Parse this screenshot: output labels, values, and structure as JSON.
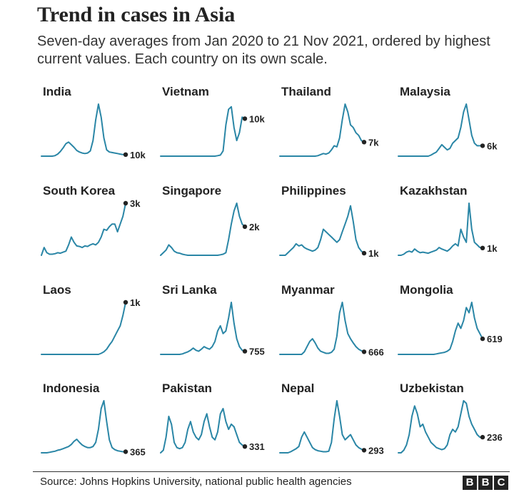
{
  "header": {
    "title": "Trend in cases in Asia",
    "subtitle": "Seven-day averages from Jan 2020 to 21 Nov 2021, ordered by highest current values. Each country on its own scale."
  },
  "footer": {
    "source": "Source: Johns Hopkins University, national public health agencies",
    "logo_letters": [
      "B",
      "B",
      "C"
    ]
  },
  "colors": {
    "line": "#2a86a6",
    "dot": "#222222",
    "text": "#222222"
  },
  "chart_data": {
    "type": "line",
    "layout": "small-multiples",
    "x_range": [
      "Jan 2020",
      "21 Nov 2021"
    ],
    "independent_scales": true,
    "panels": [
      {
        "name": "India",
        "current_label": "10k",
        "current": 10000,
        "y": [
          0,
          0,
          0,
          0,
          0,
          0.01,
          0.04,
          0.09,
          0.16,
          0.24,
          0.27,
          0.22,
          0.17,
          0.11,
          0.08,
          0.06,
          0.05,
          0.06,
          0.1,
          0.3,
          0.7,
          1.0,
          0.75,
          0.35,
          0.12,
          0.08,
          0.07,
          0.06,
          0.05,
          0.04,
          0.03,
          0.03
        ]
      },
      {
        "name": "Vietnam",
        "current_label": "10k",
        "current": 10000,
        "y": [
          0,
          0,
          0,
          0,
          0,
          0,
          0,
          0,
          0,
          0,
          0,
          0,
          0,
          0,
          0,
          0,
          0,
          0,
          0,
          0,
          0,
          0.01,
          0.02,
          0.1,
          0.6,
          0.9,
          0.95,
          0.55,
          0.3,
          0.45,
          0.75,
          0.72
        ]
      },
      {
        "name": "Thailand",
        "current_label": "7k",
        "current": 7000,
        "y": [
          0,
          0,
          0,
          0,
          0,
          0,
          0,
          0,
          0,
          0,
          0,
          0,
          0,
          0,
          0.01,
          0.03,
          0.05,
          0.04,
          0.06,
          0.12,
          0.2,
          0.18,
          0.35,
          0.7,
          1.0,
          0.85,
          0.6,
          0.55,
          0.45,
          0.4,
          0.3,
          0.27
        ]
      },
      {
        "name": "Malaysia",
        "current_label": "6k",
        "current": 6000,
        "y": [
          0,
          0,
          0,
          0,
          0,
          0,
          0,
          0,
          0,
          0,
          0,
          0,
          0.02,
          0.05,
          0.08,
          0.15,
          0.22,
          0.17,
          0.12,
          0.15,
          0.25,
          0.3,
          0.35,
          0.55,
          0.85,
          1.0,
          0.7,
          0.4,
          0.25,
          0.2,
          0.2,
          0.2
        ]
      },
      {
        "name": "South Korea",
        "current_label": "3k",
        "current": 3000,
        "y": [
          0,
          0.15,
          0.05,
          0.02,
          0.02,
          0.03,
          0.05,
          0.04,
          0.06,
          0.08,
          0.2,
          0.35,
          0.25,
          0.18,
          0.17,
          0.15,
          0.18,
          0.17,
          0.2,
          0.22,
          0.2,
          0.25,
          0.35,
          0.5,
          0.48,
          0.55,
          0.6,
          0.6,
          0.45,
          0.6,
          0.75,
          1.0
        ]
      },
      {
        "name": "Singapore",
        "current_label": "2k",
        "current": 2000,
        "y": [
          0,
          0.05,
          0.1,
          0.2,
          0.15,
          0.08,
          0.05,
          0.04,
          0.02,
          0.01,
          0,
          0,
          0,
          0,
          0,
          0,
          0,
          0,
          0,
          0,
          0,
          0,
          0.01,
          0.02,
          0.05,
          0.3,
          0.6,
          0.85,
          1.0,
          0.75,
          0.6,
          0.55
        ]
      },
      {
        "name": "Philippines",
        "current_label": "1k",
        "current": 1000,
        "y": [
          0,
          0,
          0,
          0.05,
          0.1,
          0.15,
          0.22,
          0.18,
          0.2,
          0.15,
          0.12,
          0.1,
          0.08,
          0.1,
          0.15,
          0.3,
          0.5,
          0.45,
          0.4,
          0.35,
          0.3,
          0.25,
          0.3,
          0.45,
          0.6,
          0.75,
          0.95,
          0.65,
          0.3,
          0.15,
          0.08,
          0.04
        ]
      },
      {
        "name": "Kazakhstan",
        "current_label": "1k",
        "current": 1000,
        "y": [
          0,
          0,
          0.02,
          0.06,
          0.08,
          0.06,
          0.12,
          0.08,
          0.05,
          0.06,
          0.05,
          0.04,
          0.06,
          0.08,
          0.1,
          0.15,
          0.12,
          0.1,
          0.08,
          0.12,
          0.18,
          0.22,
          0.18,
          0.5,
          0.35,
          0.25,
          1.0,
          0.5,
          0.25,
          0.2,
          0.15,
          0.14
        ]
      },
      {
        "name": "Laos",
        "current_label": "1k",
        "current": 1000,
        "y": [
          0,
          0,
          0,
          0,
          0,
          0,
          0,
          0,
          0,
          0,
          0,
          0,
          0,
          0,
          0,
          0,
          0,
          0,
          0,
          0,
          0,
          0,
          0.02,
          0.05,
          0.1,
          0.18,
          0.25,
          0.35,
          0.45,
          0.55,
          0.75,
          1.0
        ]
      },
      {
        "name": "Sri Lanka",
        "current_label": "755",
        "current": 755,
        "y": [
          0,
          0,
          0,
          0,
          0,
          0,
          0,
          0,
          0.01,
          0.03,
          0.05,
          0.08,
          0.12,
          0.08,
          0.06,
          0.1,
          0.15,
          0.12,
          0.1,
          0.15,
          0.25,
          0.45,
          0.55,
          0.4,
          0.45,
          0.7,
          1.0,
          0.6,
          0.3,
          0.15,
          0.08,
          0.06
        ]
      },
      {
        "name": "Myanmar",
        "current_label": "666",
        "current": 666,
        "y": [
          0,
          0,
          0,
          0,
          0,
          0,
          0,
          0,
          0,
          0.05,
          0.15,
          0.25,
          0.3,
          0.22,
          0.12,
          0.06,
          0.04,
          0.02,
          0.02,
          0.04,
          0.1,
          0.35,
          0.8,
          1.0,
          0.65,
          0.4,
          0.3,
          0.22,
          0.15,
          0.1,
          0.07,
          0.05
        ]
      },
      {
        "name": "Mongolia",
        "current_label": "619",
        "current": 619,
        "y": [
          0,
          0,
          0,
          0,
          0,
          0,
          0,
          0,
          0,
          0,
          0,
          0,
          0,
          0,
          0.01,
          0.02,
          0.03,
          0.04,
          0.06,
          0.1,
          0.25,
          0.45,
          0.6,
          0.5,
          0.65,
          0.9,
          0.8,
          1.0,
          0.7,
          0.5,
          0.4,
          0.3
        ]
      },
      {
        "name": "Indonesia",
        "current_label": "365",
        "current": 365,
        "y": [
          0,
          0,
          0,
          0.01,
          0.02,
          0.03,
          0.05,
          0.06,
          0.08,
          0.1,
          0.12,
          0.16,
          0.22,
          0.26,
          0.2,
          0.15,
          0.12,
          0.1,
          0.1,
          0.12,
          0.2,
          0.45,
          0.85,
          1.0,
          0.6,
          0.25,
          0.1,
          0.06,
          0.04,
          0.03,
          0.02,
          0.02
        ]
      },
      {
        "name": "Pakistan",
        "current_label": "331",
        "current": 331,
        "y": [
          0,
          0.05,
          0.3,
          0.7,
          0.55,
          0.2,
          0.1,
          0.08,
          0.1,
          0.2,
          0.45,
          0.6,
          0.4,
          0.3,
          0.25,
          0.35,
          0.6,
          0.75,
          0.5,
          0.3,
          0.25,
          0.4,
          0.75,
          0.85,
          0.6,
          0.45,
          0.55,
          0.5,
          0.35,
          0.2,
          0.15,
          0.12
        ]
      },
      {
        "name": "Nepal",
        "current_label": "293",
        "current": 293,
        "y": [
          0,
          0,
          0,
          0,
          0.02,
          0.05,
          0.08,
          0.12,
          0.3,
          0.4,
          0.3,
          0.2,
          0.1,
          0.06,
          0.04,
          0.03,
          0.02,
          0.02,
          0.03,
          0.2,
          0.65,
          1.0,
          0.7,
          0.35,
          0.25,
          0.3,
          0.35,
          0.25,
          0.15,
          0.1,
          0.07,
          0.05
        ]
      },
      {
        "name": "Uzbekistan",
        "current_label": "236",
        "current": 236,
        "y": [
          0,
          0,
          0.05,
          0.15,
          0.35,
          0.7,
          0.9,
          0.75,
          0.5,
          0.55,
          0.4,
          0.3,
          0.2,
          0.15,
          0.1,
          0.08,
          0.06,
          0.08,
          0.15,
          0.35,
          0.45,
          0.4,
          0.5,
          0.75,
          1.0,
          0.95,
          0.7,
          0.55,
          0.45,
          0.35,
          0.3,
          0.3
        ]
      }
    ]
  }
}
